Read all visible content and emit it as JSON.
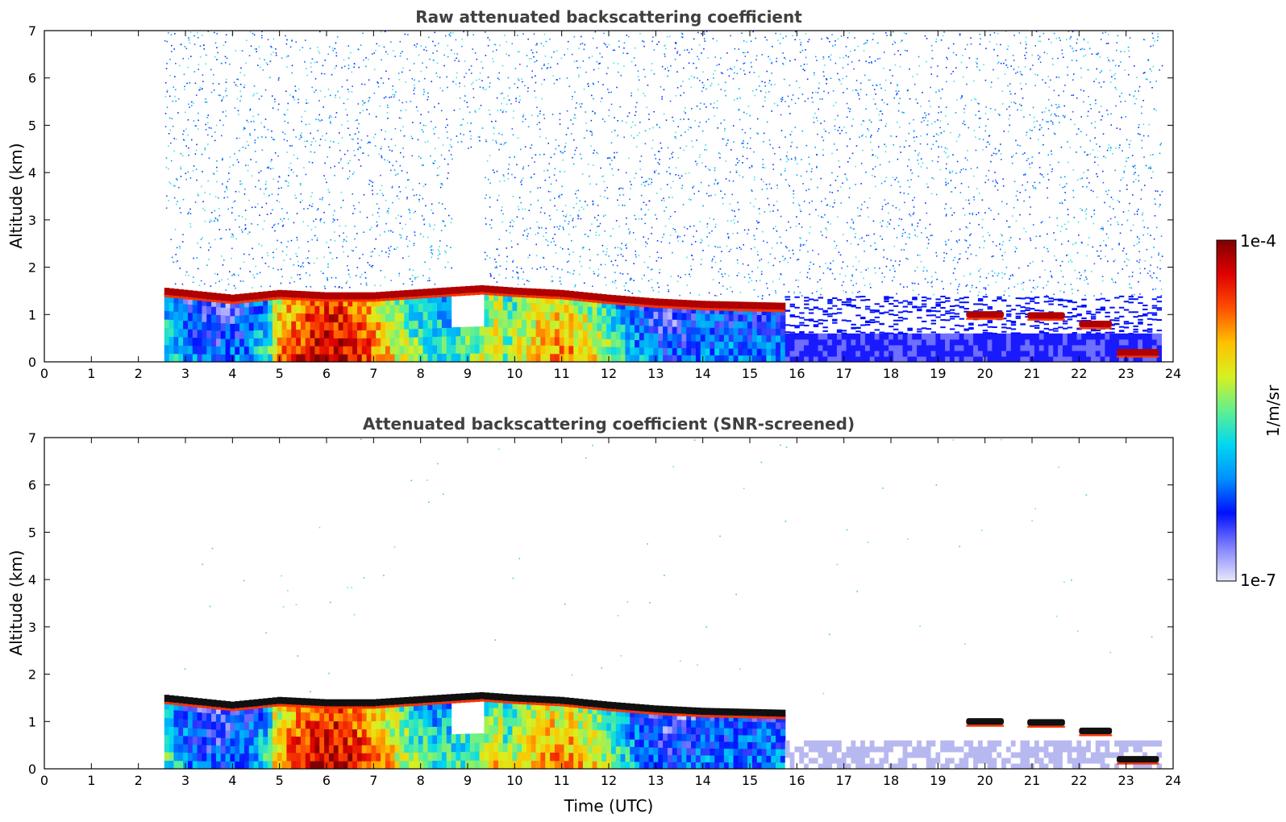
{
  "chart_data": [
    {
      "type": "heatmap",
      "title": "Raw attenuated backscattering coefficient",
      "xlabel": "",
      "ylabel": "Altitude (km)",
      "xlim": [
        0,
        24
      ],
      "ylim": [
        0,
        7
      ],
      "xticks": [
        "0",
        "1",
        "2",
        "3",
        "4",
        "5",
        "6",
        "7",
        "8",
        "9",
        "10",
        "11",
        "12",
        "13",
        "14",
        "15",
        "16",
        "17",
        "18",
        "19",
        "20",
        "21",
        "22",
        "23",
        "24"
      ],
      "yticks": [
        "0",
        "1",
        "2",
        "3",
        "4",
        "5",
        "6",
        "7"
      ],
      "data_extent_hours": [
        2.55,
        23.7
      ],
      "features": {
        "boundary_layer_top_km": [
          [
            2.55,
            1.5
          ],
          [
            4.0,
            1.35
          ],
          [
            5.0,
            1.45
          ],
          [
            6.0,
            1.4
          ],
          [
            7.0,
            1.4
          ],
          [
            8.5,
            1.5
          ],
          [
            9.3,
            1.55
          ],
          [
            10.0,
            1.5
          ],
          [
            11.0,
            1.45
          ],
          [
            12.0,
            1.35
          ],
          [
            13.0,
            1.27
          ],
          [
            14.0,
            1.22
          ],
          [
            15.7,
            1.18
          ]
        ],
        "cloud_patches": [
          {
            "t0": 19.6,
            "t1": 20.4,
            "alt_km": 1.0
          },
          {
            "t0": 20.9,
            "t1": 21.7,
            "alt_km": 0.98
          },
          {
            "t0": 22.0,
            "t1": 22.7,
            "alt_km": 0.8
          },
          {
            "t0": 22.8,
            "t1": 23.7,
            "alt_km": 0.2
          }
        ]
      }
    },
    {
      "type": "heatmap",
      "title": "Attenuated backscattering coefficient (SNR-screened)",
      "xlabel": "Time (UTC)",
      "ylabel": "Altitude (km)",
      "xlim": [
        0,
        24
      ],
      "ylim": [
        0,
        7
      ],
      "xticks": [
        "0",
        "1",
        "2",
        "3",
        "4",
        "5",
        "6",
        "7",
        "8",
        "9",
        "10",
        "11",
        "12",
        "13",
        "14",
        "15",
        "16",
        "17",
        "18",
        "19",
        "20",
        "21",
        "22",
        "23",
        "24"
      ],
      "yticks": [
        "0",
        "1",
        "2",
        "3",
        "4",
        "5",
        "6",
        "7"
      ],
      "data_extent_hours": [
        2.55,
        23.7
      ]
    }
  ],
  "colorbar": {
    "label": "1/m/sr",
    "max_label": "1e-4",
    "min_label": "1e-7",
    "colors": [
      "#e8e8fa",
      "#8080ff",
      "#0010ff",
      "#0090ff",
      "#00d8f0",
      "#60f090",
      "#d8f020",
      "#ffc000",
      "#ff5000",
      "#e00000",
      "#800000"
    ]
  }
}
